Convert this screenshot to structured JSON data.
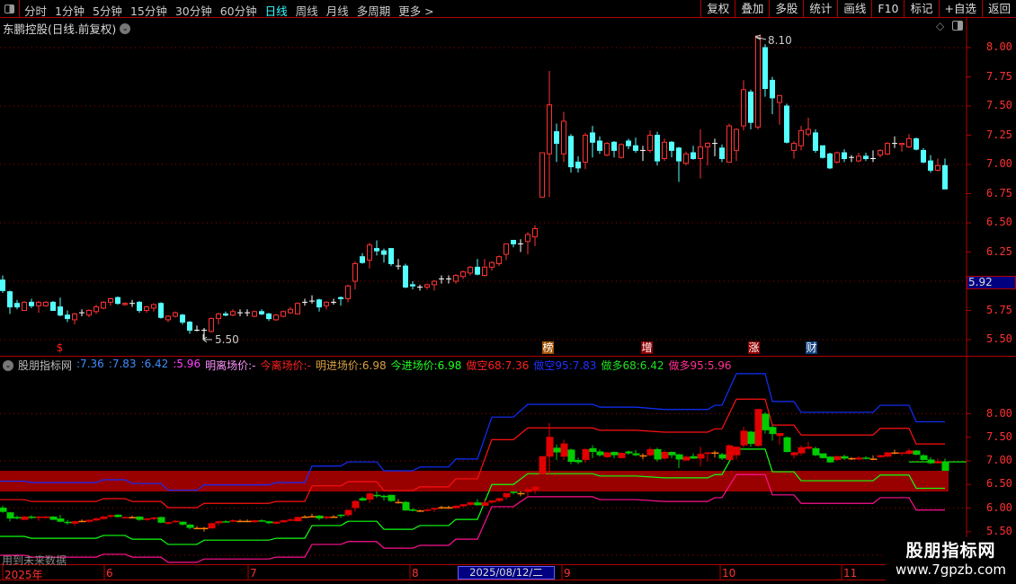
{
  "toolbar": {
    "periods": [
      "分时",
      "1分钟",
      "5分钟",
      "15分钟",
      "30分钟",
      "60分钟",
      "日线",
      "周线",
      "月线",
      "多周期",
      "更多 >"
    ],
    "active_period": "日线",
    "buttons": [
      "复权",
      "叠加",
      "多股",
      "统计",
      "画线",
      "F10",
      "标记",
      "+自选",
      "返回"
    ]
  },
  "stock": {
    "title": "东鹏控股(日线.前复权)"
  },
  "main_axis": {
    "labels": [
      "8.00",
      "7.75",
      "7.50",
      "7.25",
      "7.00",
      "6.75",
      "6.50",
      "6.25",
      "5.75",
      "5.50"
    ],
    "current_price": "5.92"
  },
  "annotations": {
    "high": "8.10",
    "low": "5.50"
  },
  "markers": [
    {
      "text": "$",
      "color": "#ff2020",
      "bg": "transparent"
    },
    {
      "text": "榜",
      "color": "#fff",
      "bg": "#a05000"
    },
    {
      "text": "增",
      "color": "#fff",
      "bg": "#900000"
    },
    {
      "text": "涨",
      "color": "#fff",
      "bg": "#900000"
    },
    {
      "text": "财",
      "color": "#fff",
      "bg": "#104080"
    }
  ],
  "indicator": {
    "name": "股朋指标网",
    "values": [
      {
        "text": ":7.36",
        "color": "#3c8cff"
      },
      {
        "text": ":7.83",
        "color": "#3c8cff"
      },
      {
        "text": ":6.42",
        "color": "#3c8cff"
      },
      {
        "text": ":5.96",
        "color": "#ff40ff"
      },
      {
        "text": "明离场价:-",
        "color": "#ff90ff"
      },
      {
        "text": "今离场价:-",
        "color": "#ff2020"
      },
      {
        "text": "明进场价:6.98",
        "color": "#d8a040"
      },
      {
        "text": "今进场价:6.98",
        "color": "#20ff20"
      },
      {
        "text": "做空68:7.36",
        "color": "#ff2020"
      },
      {
        "text": "做空95:7.83",
        "color": "#2030ff"
      },
      {
        "text": "做多68:6.42",
        "color": "#20e020"
      },
      {
        "text": "做多95:5.96",
        "color": "#ff3090"
      }
    ],
    "axis_labels": [
      "8.00",
      "7.50",
      "7.00",
      "6.50",
      "6.00",
      "5.50"
    ],
    "warning": "用到未来数据"
  },
  "date_axis": {
    "labels": [
      "2025年",
      "6",
      "7",
      "8",
      "9",
      "10",
      "11"
    ],
    "cursor_date": "2025/08/12/二"
  },
  "watermark": {
    "name": "股朋指标网",
    "url": "www.7gpzb.com"
  },
  "colors": {
    "up": "#ff3232",
    "down": "#54ffff",
    "doji": "#ffffff",
    "ind_up": "#e00000",
    "ind_down": "#00cc00",
    "zone": "#990000",
    "grid": "#b00000"
  },
  "chart_data": {
    "type": "candlestick",
    "ohlc_fields": [
      "open",
      "high",
      "low",
      "close"
    ],
    "candles": [
      [
        6.01,
        6.05,
        5.9,
        5.92
      ],
      [
        5.91,
        5.92,
        5.72,
        5.78
      ],
      [
        5.81,
        5.84,
        5.76,
        5.78
      ],
      [
        5.75,
        5.83,
        5.75,
        5.82
      ],
      [
        5.82,
        5.85,
        5.77,
        5.79
      ],
      [
        5.79,
        5.83,
        5.73,
        5.82
      ],
      [
        5.79,
        5.83,
        5.78,
        5.82
      ],
      [
        5.82,
        5.83,
        5.75,
        5.75
      ],
      [
        5.78,
        5.86,
        5.7,
        5.71
      ],
      [
        5.71,
        5.75,
        5.65,
        5.68
      ],
      [
        5.67,
        5.73,
        5.63,
        5.72
      ],
      [
        5.73,
        5.76,
        5.7,
        5.73
      ],
      [
        5.71,
        5.76,
        5.69,
        5.75
      ],
      [
        5.74,
        5.8,
        5.72,
        5.78
      ],
      [
        5.77,
        5.83,
        5.76,
        5.82
      ],
      [
        5.82,
        5.86,
        5.79,
        5.85
      ],
      [
        5.86,
        5.87,
        5.8,
        5.81
      ],
      [
        5.8,
        5.82,
        5.79,
        5.81
      ],
      [
        5.81,
        5.84,
        5.78,
        5.81
      ],
      [
        5.82,
        5.83,
        5.73,
        5.75
      ],
      [
        5.75,
        5.79,
        5.73,
        5.78
      ],
      [
        5.77,
        5.81,
        5.74,
        5.8
      ],
      [
        5.81,
        5.82,
        5.68,
        5.69
      ],
      [
        5.67,
        5.71,
        5.65,
        5.7
      ],
      [
        5.7,
        5.74,
        5.69,
        5.73
      ],
      [
        5.71,
        5.72,
        5.63,
        5.65
      ],
      [
        5.65,
        5.66,
        5.55,
        5.58
      ],
      [
        5.58,
        5.62,
        5.57,
        5.58
      ],
      [
        5.58,
        5.6,
        5.5,
        5.58
      ],
      [
        5.57,
        5.69,
        5.56,
        5.68
      ],
      [
        5.68,
        5.73,
        5.63,
        5.72
      ],
      [
        5.72,
        5.74,
        5.7,
        5.71
      ],
      [
        5.71,
        5.76,
        5.7,
        5.74
      ],
      [
        5.73,
        5.76,
        5.7,
        5.73
      ],
      [
        5.73,
        5.76,
        5.7,
        5.73
      ],
      [
        5.7,
        5.75,
        5.69,
        5.74
      ],
      [
        5.74,
        5.76,
        5.71,
        5.72
      ],
      [
        5.72,
        5.73,
        5.66,
        5.68
      ],
      [
        5.67,
        5.72,
        5.66,
        5.71
      ],
      [
        5.7,
        5.75,
        5.69,
        5.74
      ],
      [
        5.73,
        5.78,
        5.72,
        5.76
      ],
      [
        5.72,
        5.82,
        5.72,
        5.81
      ],
      [
        5.82,
        5.85,
        5.79,
        5.82
      ],
      [
        5.83,
        5.88,
        5.81,
        5.83
      ],
      [
        5.84,
        5.85,
        5.74,
        5.78
      ],
      [
        5.79,
        5.83,
        5.76,
        5.82
      ],
      [
        5.82,
        5.85,
        5.8,
        5.82
      ],
      [
        5.86,
        5.87,
        5.79,
        5.85
      ],
      [
        5.85,
        5.97,
        5.82,
        5.96
      ],
      [
        6.0,
        6.17,
        5.93,
        6.15
      ],
      [
        6.21,
        6.24,
        6.15,
        6.16
      ],
      [
        6.18,
        6.33,
        6.11,
        6.31
      ],
      [
        6.28,
        6.35,
        6.22,
        6.26
      ],
      [
        6.26,
        6.28,
        6.16,
        6.23
      ],
      [
        6.28,
        6.28,
        6.13,
        6.15
      ],
      [
        6.13,
        6.19,
        6.1,
        6.13
      ],
      [
        6.13,
        6.15,
        5.94,
        5.95
      ],
      [
        5.97,
        6.0,
        5.93,
        5.96
      ],
      [
        5.95,
        5.97,
        5.92,
        5.95
      ],
      [
        5.95,
        5.98,
        5.93,
        5.97
      ],
      [
        5.97,
        6.01,
        5.92,
        6.0
      ],
      [
        6.02,
        6.05,
        5.98,
        6.02
      ],
      [
        6.02,
        6.05,
        5.98,
        6.02
      ],
      [
        6.0,
        6.06,
        5.98,
        6.05
      ],
      [
        6.04,
        6.09,
        6.02,
        6.08
      ],
      [
        6.07,
        6.13,
        6.05,
        6.12
      ],
      [
        6.12,
        6.19,
        6.05,
        6.06
      ],
      [
        6.05,
        6.19,
        6.04,
        6.12
      ],
      [
        6.12,
        6.17,
        6.09,
        6.16
      ],
      [
        6.15,
        6.22,
        6.13,
        6.21
      ],
      [
        6.23,
        6.32,
        6.18,
        6.32
      ],
      [
        6.35,
        6.35,
        6.29,
        6.32
      ],
      [
        6.32,
        6.36,
        6.25,
        6.32
      ],
      [
        6.34,
        6.42,
        6.23,
        6.4
      ],
      [
        6.38,
        6.48,
        6.3,
        6.45
      ],
      [
        6.72,
        7.1,
        6.72,
        7.1
      ],
      [
        7.09,
        7.8,
        6.72,
        7.51
      ],
      [
        7.28,
        7.35,
        7.02,
        7.18
      ],
      [
        7.09,
        7.45,
        7.02,
        7.37
      ],
      [
        7.24,
        7.26,
        6.93,
        6.98
      ],
      [
        7.02,
        7.07,
        6.93,
        6.97
      ],
      [
        7.02,
        7.27,
        6.96,
        7.25
      ],
      [
        7.27,
        7.33,
        7.06,
        7.19
      ],
      [
        7.2,
        7.24,
        7.09,
        7.12
      ],
      [
        7.08,
        7.19,
        7.07,
        7.18
      ],
      [
        7.19,
        7.2,
        7.06,
        7.12
      ],
      [
        7.06,
        7.18,
        7.05,
        7.17
      ],
      [
        7.2,
        7.22,
        7.13,
        7.16
      ],
      [
        7.16,
        7.23,
        7.1,
        7.12
      ],
      [
        7.12,
        7.16,
        7.03,
        7.12
      ],
      [
        7.12,
        7.29,
        7.1,
        7.25
      ],
      [
        7.25,
        7.28,
        6.99,
        7.03
      ],
      [
        7.05,
        7.22,
        7.03,
        7.19
      ],
      [
        7.19,
        7.2,
        7.06,
        7.12
      ],
      [
        7.14,
        7.15,
        6.85,
        7.03
      ],
      [
        7.01,
        7.11,
        6.99,
        7.09
      ],
      [
        7.1,
        7.16,
        7.04,
        7.05
      ],
      [
        7.05,
        7.3,
        6.88,
        7.15
      ],
      [
        7.15,
        7.19,
        6.99,
        7.18
      ],
      [
        7.18,
        7.22,
        7.07,
        7.18
      ],
      [
        7.14,
        7.17,
        7.02,
        7.05
      ],
      [
        7.02,
        7.35,
        7.02,
        7.33
      ],
      [
        7.12,
        7.31,
        7.03,
        7.3
      ],
      [
        7.33,
        7.72,
        7.29,
        7.64
      ],
      [
        7.62,
        7.64,
        7.3,
        7.36
      ],
      [
        7.32,
        8.1,
        7.3,
        8.1
      ],
      [
        8.0,
        8.03,
        7.58,
        7.65
      ],
      [
        7.72,
        7.75,
        7.43,
        7.57
      ],
      [
        7.53,
        7.59,
        7.34,
        7.59
      ],
      [
        7.5,
        7.52,
        7.18,
        7.19
      ],
      [
        7.12,
        7.2,
        7.05,
        7.18
      ],
      [
        7.16,
        7.33,
        7.12,
        7.29
      ],
      [
        7.26,
        7.4,
        7.24,
        7.3
      ],
      [
        7.27,
        7.3,
        7.1,
        7.12
      ],
      [
        7.16,
        7.16,
        7.05,
        7.06
      ],
      [
        7.09,
        7.1,
        6.96,
        6.97
      ],
      [
        7.02,
        7.11,
        7.01,
        7.1
      ],
      [
        7.1,
        7.13,
        7.02,
        7.05
      ],
      [
        7.06,
        7.08,
        7.02,
        7.06
      ],
      [
        7.03,
        7.1,
        7.02,
        7.07
      ],
      [
        7.07,
        7.1,
        7.03,
        7.05
      ],
      [
        7.05,
        7.12,
        7.02,
        7.05
      ],
      [
        7.08,
        7.13,
        7.06,
        7.12
      ],
      [
        7.09,
        7.19,
        7.08,
        7.18
      ],
      [
        7.18,
        7.24,
        7.14,
        7.18
      ],
      [
        7.17,
        7.18,
        7.11,
        7.18
      ],
      [
        7.15,
        7.26,
        7.14,
        7.22
      ],
      [
        7.22,
        7.23,
        7.12,
        7.13
      ],
      [
        7.12,
        7.14,
        7.01,
        7.02
      ],
      [
        7.03,
        7.08,
        6.93,
        6.95
      ],
      [
        6.95,
        7.05,
        6.94,
        6.99
      ],
      [
        6.99,
        7.05,
        6.79,
        6.79
      ]
    ],
    "main_ylim": [
      5.45,
      8.25
    ],
    "indicator_ylim": [
      4.8,
      8.95
    ],
    "band_segments": [
      [
        0,
        3
      ],
      [
        4,
        13
      ],
      [
        14,
        17
      ],
      [
        18,
        22
      ],
      [
        23,
        27
      ],
      [
        28,
        37
      ],
      [
        38,
        42
      ],
      [
        43,
        47
      ],
      [
        48,
        52
      ],
      [
        53,
        57
      ],
      [
        58,
        62
      ],
      [
        63,
        66
      ],
      [
        68,
        71
      ],
      [
        73,
        82
      ],
      [
        83,
        88
      ],
      [
        92,
        98
      ],
      [
        99,
        100
      ],
      [
        102,
        106
      ],
      [
        107,
        110
      ],
      [
        111,
        121
      ],
      [
        122,
        126
      ],
      [
        127,
        131
      ]
    ],
    "bands": [
      {
        "name": "做空95",
        "color": "#1030ff",
        "values": [
          6.57,
          6.54,
          6.6,
          6.52,
          6.38,
          6.49,
          6.54,
          6.89,
          6.98,
          6.79,
          6.87,
          7.04,
          7.93,
          8.2,
          8.14,
          8.09,
          8.18,
          8.85,
          8.26,
          8.03,
          8.18,
          7.83
        ]
      },
      {
        "name": "做空68",
        "color": "#ff1010",
        "values": [
          6.18,
          6.14,
          6.2,
          6.14,
          6.01,
          6.1,
          6.14,
          6.47,
          6.56,
          6.37,
          6.45,
          6.62,
          7.45,
          7.7,
          7.65,
          7.61,
          7.68,
          8.31,
          7.76,
          7.55,
          7.69,
          7.36
        ]
      },
      {
        "name": "做多68",
        "color": "#10ff10",
        "values": [
          5.4,
          5.36,
          5.42,
          5.34,
          5.23,
          5.32,
          5.36,
          5.63,
          5.72,
          5.55,
          5.63,
          5.76,
          6.5,
          6.73,
          6.68,
          6.64,
          6.71,
          7.25,
          6.77,
          6.58,
          6.7,
          6.42
        ]
      },
      {
        "name": "做多95",
        "color": "#ff1090",
        "values": [
          5.0,
          4.96,
          5.02,
          4.96,
          4.85,
          4.92,
          4.96,
          5.23,
          5.29,
          5.15,
          5.21,
          5.34,
          6.03,
          6.24,
          6.18,
          6.14,
          6.22,
          6.71,
          6.28,
          6.1,
          6.22,
          5.96
        ]
      }
    ],
    "entry_price": 6.98,
    "zone": [
      6.35,
      6.79
    ]
  }
}
